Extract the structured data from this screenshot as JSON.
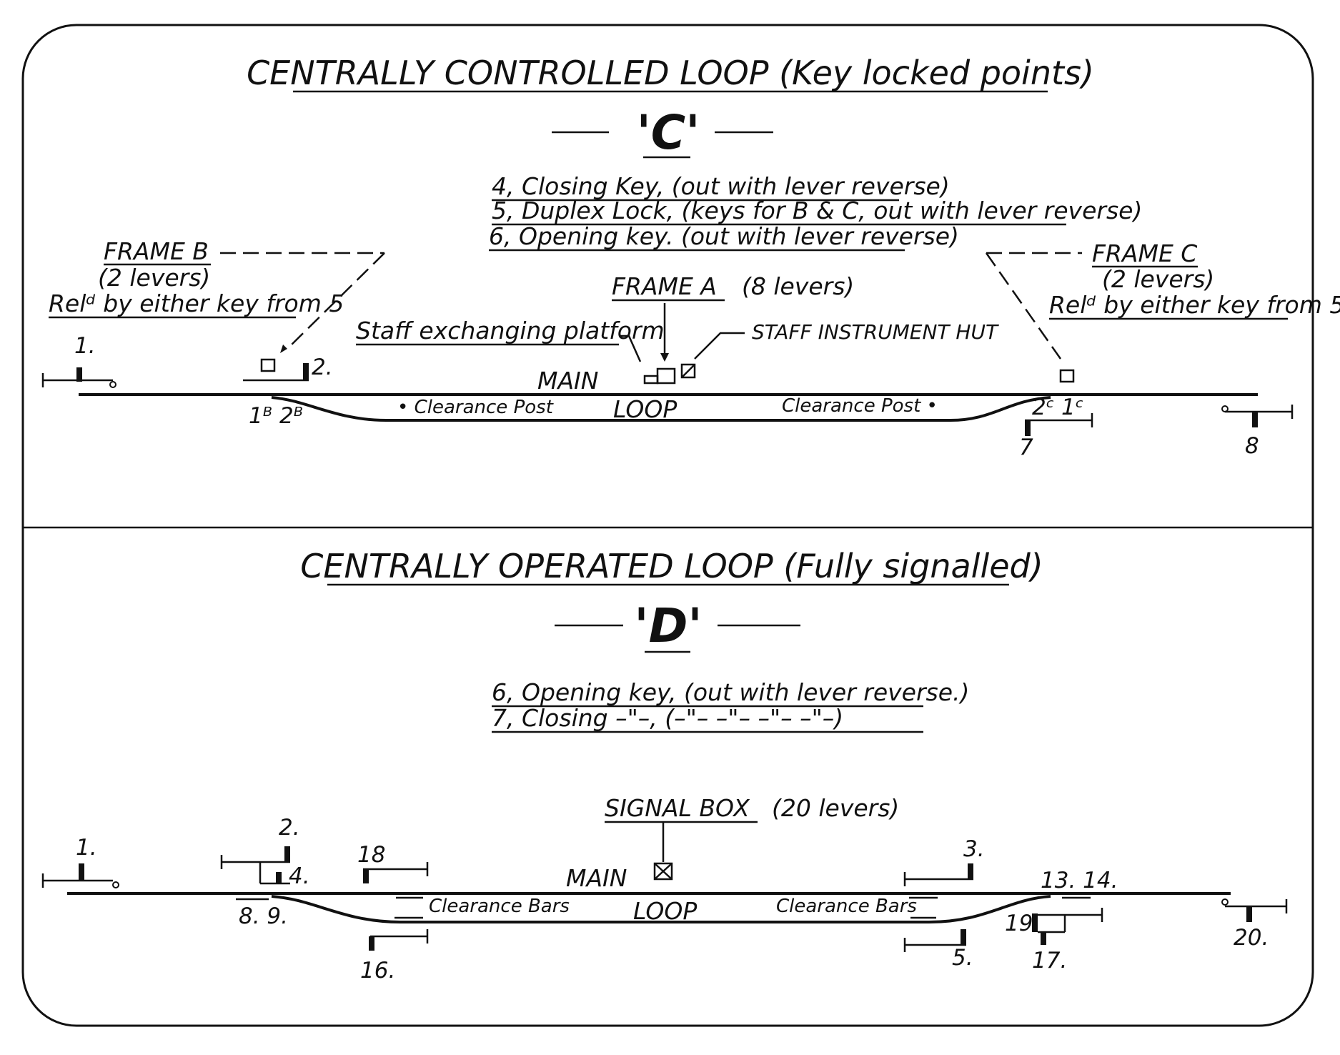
{
  "section_c": {
    "title": "CENTRALLY CONTROLLED LOOP (Key locked points)",
    "letter": "'C'",
    "notes": [
      "4, Closing Key, (out with lever reverse)",
      "5, Duplex Lock, (keys for B & C, out with lever reverse)",
      "6, Opening key. (out with lever reverse)"
    ],
    "frame_b": {
      "title": "FRAME B",
      "levers": "(2 levers)",
      "release": "Relᵈ by either key from 5"
    },
    "frame_c": {
      "title": "FRAME C",
      "levers": "(2 levers)",
      "release": "Relᵈ by either key from 5"
    },
    "frame_a": {
      "title": "FRAME A",
      "levers": "(8 levers)"
    },
    "staff_platform": "Staff exchanging platform",
    "staff_hut": "STAFF INSTRUMENT HUT",
    "main": "MAIN",
    "loop": "LOOP",
    "clearance_left": "• Clearance Post",
    "clearance_right": "Clearance Post •",
    "numbers": {
      "n1": "1.",
      "n2": "2.",
      "n1b2b": "1ᴮ 2ᴮ",
      "n2c1c": "2ᶜ 1ᶜ",
      "n7": "7",
      "n8": "8"
    }
  },
  "section_d": {
    "title": "CENTRALLY OPERATED LOOP (Fully signalled)",
    "letter": "'D'",
    "notes": [
      "6, Opening key, (out with lever reverse.)",
      "7, Closing –\"–, (–\"– –\"– –\"– –\"–)"
    ],
    "signal_box": "SIGNAL BOX",
    "signal_box_levers": "(20 levers)",
    "main": "MAIN",
    "loop": "LOOP",
    "clearance_left": "Clearance Bars",
    "clearance_right": "Clearance Bars",
    "numbers": {
      "n1": "1.",
      "n2": "2.",
      "n3": "3.",
      "n4": "4.",
      "n5": "5.",
      "n89": "8. 9.",
      "n1314": "13. 14.",
      "n16": "16.",
      "n17": "17.",
      "n18": "18",
      "n19": "19.",
      "n20": "20."
    }
  }
}
